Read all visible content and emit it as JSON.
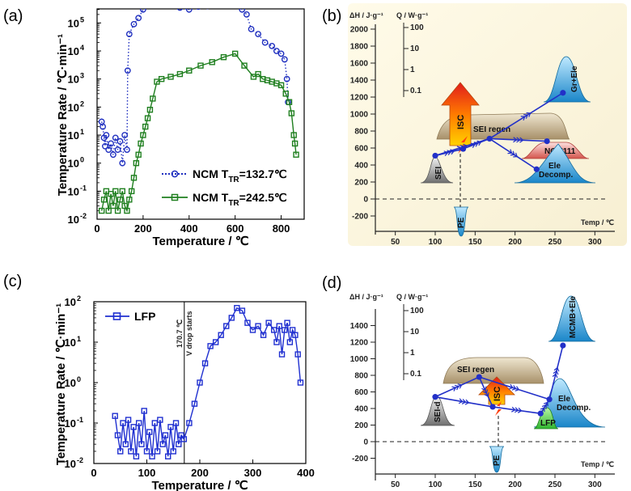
{
  "panels": {
    "a": {
      "letter": "(a)"
    },
    "b": {
      "letter": "(b)"
    },
    "c": {
      "letter": "(c)"
    },
    "d": {
      "letter": "(d)"
    }
  },
  "chart_data": [
    {
      "id": "a",
      "type": "scatter",
      "title": "",
      "xlabel": "Temperature / ℃",
      "ylabel": "Temperature Rate / ℃·min⁻¹",
      "xlim": [
        0,
        900
      ],
      "ylim_log10": [
        -2,
        5.5
      ],
      "yscale": "log",
      "xticks": [
        0,
        200,
        400,
        600,
        800
      ],
      "xtick_labels": [
        "0",
        "200",
        "400",
        "600",
        "800"
      ],
      "yticks_exp": [
        -2,
        -1,
        0,
        1,
        2,
        3,
        4,
        5
      ],
      "ytick_labels": [
        "10",
        "10",
        "10",
        "10",
        "10",
        "10",
        "10",
        "10"
      ],
      "ytick_exponents": [
        "-2",
        "-1",
        "0",
        "1",
        "2",
        "3",
        "4",
        "5"
      ],
      "legend": {
        "position": "bottom-right"
      },
      "series": [
        {
          "name": "NCM T_TR=132.7℃",
          "legend_text": "NCM T",
          "legend_sub": "TR",
          "legend_value": "=132.7℃",
          "color": "#1f2fbf",
          "marker": "circle",
          "linestyle": "dotted",
          "x": [
            20,
            25,
            30,
            35,
            40,
            50,
            60,
            70,
            80,
            90,
            100,
            110,
            120,
            130,
            133,
            140,
            160,
            180,
            200,
            250,
            280,
            320,
            360,
            400,
            440,
            480,
            520,
            560,
            600,
            630,
            650,
            670,
            700,
            730,
            760,
            780,
            800,
            815,
            825,
            830
          ],
          "y": [
            30,
            20,
            8,
            4,
            10,
            3,
            5,
            2,
            8,
            3,
            6,
            1,
            10,
            3,
            2000,
            40000,
            90000,
            150000,
            300000,
            450000,
            480000,
            420000,
            350000,
            300000,
            380000,
            400000,
            420000,
            430000,
            470000,
            300000,
            200000,
            60000,
            40000,
            20000,
            15000,
            10000,
            8000,
            5000,
            1000,
            150
          ]
        },
        {
          "name": "NCM T_TR=242.5℃",
          "legend_text": "NCM T",
          "legend_sub": "TR",
          "legend_value": "=242.5℃",
          "color": "#1f7f1f",
          "marker": "square",
          "linestyle": "solid",
          "x": [
            20,
            30,
            40,
            50,
            60,
            70,
            80,
            90,
            100,
            110,
            120,
            130,
            140,
            150,
            160,
            170,
            180,
            190,
            200,
            210,
            220,
            230,
            242,
            260,
            280,
            320,
            360,
            400,
            450,
            500,
            550,
            600,
            640,
            680,
            700,
            720,
            740,
            760,
            780,
            800,
            820,
            835,
            845,
            855,
            860,
            865
          ],
          "y": [
            0.02,
            0.05,
            0.1,
            0.02,
            0.08,
            0.03,
            0.1,
            0.02,
            0.05,
            0.1,
            0.03,
            0.02,
            0.05,
            0.1,
            0.3,
            1,
            2,
            5,
            10,
            20,
            40,
            80,
            200,
            800,
            1000,
            1200,
            1500,
            2000,
            3000,
            4000,
            6000,
            8000,
            3000,
            1200,
            1500,
            1000,
            900,
            800,
            700,
            600,
            300,
            150,
            60,
            10,
            5,
            2
          ]
        }
      ]
    },
    {
      "id": "b",
      "type": "diagram",
      "left_axis_label": "ΔH / J·g⁻¹",
      "q_axis_label": "Q / W·g⁻¹",
      "x_axis_label": "Temp / ℃",
      "yticks": [
        2000,
        1800,
        1600,
        1400,
        1200,
        1000,
        800,
        600,
        400,
        200,
        0,
        -200
      ],
      "ytick_labels": [
        "2000",
        "1800",
        "1600",
        "1400",
        "1200",
        "1000",
        "800",
        "600",
        "400",
        "200",
        "0",
        "-200"
      ],
      "xticks": [
        50,
        100,
        150,
        200,
        250,
        300
      ],
      "xtick_labels": [
        "50",
        "100",
        "150",
        "200",
        "250",
        "300"
      ],
      "qticks": [
        100,
        10,
        1,
        0.1
      ],
      "qtick_labels": [
        "100",
        "10",
        "1",
        "0.1"
      ],
      "labels": {
        "sei": "SEI",
        "pe": "PE",
        "sei_regen": "SEI regen",
        "isc": "ISC",
        "ncm111": "NCM111",
        "ele": "Ele",
        "decomp": "Decomp.",
        "gr_ele": "Gr+Ele"
      },
      "nodes": [
        {
          "name": "SEI",
          "t": 100,
          "h": 510
        },
        {
          "name": "ISC",
          "t": 135,
          "h": 590
        },
        {
          "name": "SEI regen",
          "t": 168,
          "h": 710
        },
        {
          "name": "NCM111",
          "t": 240,
          "h": 680
        },
        {
          "name": "Ele Decomp.",
          "t": 227,
          "h": 350
        },
        {
          "name": "Gr+Ele",
          "t": 260,
          "h": 1250
        }
      ]
    },
    {
      "id": "c",
      "type": "scatter",
      "title": "",
      "xlabel": "Temperature / ℃",
      "ylabel": "Temperature Rate / ℃·min⁻¹",
      "xlim": [
        0,
        400
      ],
      "ylim_log10": [
        -2,
        2
      ],
      "yscale": "log",
      "xticks": [
        0,
        100,
        200,
        300,
        400
      ],
      "xtick_labels": [
        "0",
        "100",
        "200",
        "300",
        "400"
      ],
      "yticks_exp": [
        -2,
        -1,
        0,
        1,
        2
      ],
      "ytick_labels": [
        "10",
        "10",
        "10",
        "10",
        "10"
      ],
      "ytick_exponents": [
        "-2",
        "-1",
        "0",
        "1",
        "2"
      ],
      "legend": {
        "position": "top-left"
      },
      "annotation": {
        "text1": "170.7 ℃",
        "text2": "V drop starts",
        "x": 170.7
      },
      "series": [
        {
          "name": "LFP",
          "color": "#1f2fd0",
          "marker": "square",
          "linestyle": "solid",
          "x": [
            40,
            45,
            50,
            55,
            60,
            65,
            70,
            75,
            80,
            85,
            90,
            95,
            100,
            105,
            110,
            115,
            120,
            125,
            130,
            135,
            140,
            145,
            150,
            155,
            160,
            165,
            170,
            180,
            190,
            200,
            210,
            220,
            230,
            240,
            250,
            260,
            270,
            280,
            290,
            300,
            310,
            320,
            330,
            340,
            345,
            350,
            355,
            360,
            365,
            370,
            375,
            380,
            385,
            390
          ],
          "y": [
            0.15,
            0.05,
            0.02,
            0.1,
            0.03,
            0.12,
            0.02,
            0.08,
            0.015,
            0.1,
            0.03,
            0.2,
            0.02,
            0.06,
            0.015,
            0.1,
            0.02,
            0.12,
            0.03,
            0.05,
            0.015,
            0.08,
            0.02,
            0.1,
            0.03,
            0.05,
            0.04,
            0.1,
            0.3,
            1,
            3,
            8,
            10,
            15,
            25,
            40,
            70,
            60,
            30,
            20,
            25,
            15,
            30,
            20,
            10,
            25,
            5,
            20,
            30,
            10,
            20,
            15,
            5,
            1
          ]
        }
      ]
    },
    {
      "id": "d",
      "type": "diagram",
      "left_axis_label": "ΔH / J·g⁻¹",
      "q_axis_label": "Q / W·g⁻¹",
      "x_axis_label": "Temp / ℃",
      "yticks": [
        1400,
        1200,
        1000,
        800,
        600,
        400,
        200,
        0,
        -200
      ],
      "ytick_labels": [
        "1400",
        "1200",
        "1000",
        "800",
        "600",
        "400",
        "200",
        "0",
        "-200"
      ],
      "xticks": [
        50,
        100,
        150,
        200,
        250,
        300
      ],
      "xtick_labels": [
        "50",
        "100",
        "150",
        "200",
        "250",
        "300"
      ],
      "qticks": [
        100,
        10,
        1,
        0.1
      ],
      "qtick_labels": [
        "100",
        "10",
        "1",
        "0.1"
      ],
      "labels": {
        "sei_d": "SEI-d",
        "pe": "PE",
        "sei_regen": "SEI regen",
        "isc": "ISC",
        "lfp": "LFP",
        "ele": "Ele",
        "decomp": "Decomp.",
        "mcmb_ele": "MCMB+Ele"
      },
      "nodes": [
        {
          "name": "SEI-d",
          "t": 100,
          "h": 540
        },
        {
          "name": "SEI regen",
          "t": 155,
          "h": 780
        },
        {
          "name": "ISC",
          "t": 172,
          "h": 420
        },
        {
          "name": "LFP",
          "t": 232,
          "h": 340
        },
        {
          "name": "Ele Decomp.",
          "t": 243,
          "h": 510
        },
        {
          "name": "MCMB+Ele",
          "t": 260,
          "h": 1160
        }
      ]
    }
  ]
}
